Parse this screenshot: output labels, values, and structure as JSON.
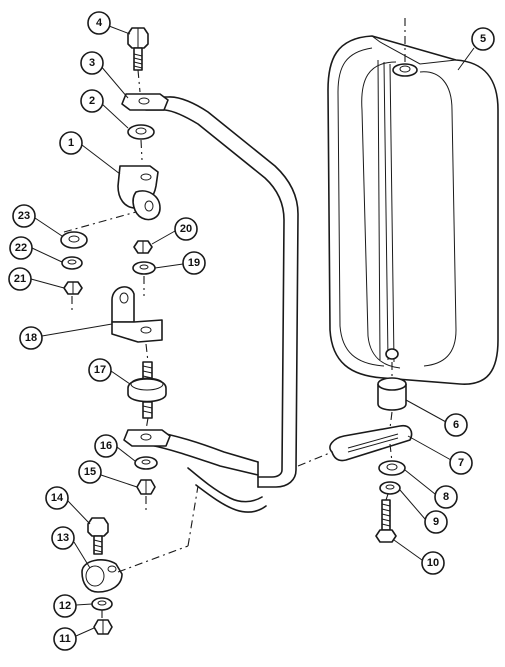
{
  "figure": {
    "type": "exploded-parts-diagram",
    "callouts": [
      {
        "id": "c1",
        "label": "1"
      },
      {
        "id": "c2",
        "label": "2"
      },
      {
        "id": "c3",
        "label": "3"
      },
      {
        "id": "c4",
        "label": "4"
      },
      {
        "id": "c5",
        "label": "5"
      },
      {
        "id": "c6",
        "label": "6"
      },
      {
        "id": "c7",
        "label": "7"
      },
      {
        "id": "c8",
        "label": "8"
      },
      {
        "id": "c9",
        "label": "9"
      },
      {
        "id": "c10",
        "label": "10"
      },
      {
        "id": "c11",
        "label": "11"
      },
      {
        "id": "c12",
        "label": "12"
      },
      {
        "id": "c13",
        "label": "13"
      },
      {
        "id": "c14",
        "label": "14"
      },
      {
        "id": "c15",
        "label": "15"
      },
      {
        "id": "c16",
        "label": "16"
      },
      {
        "id": "c17",
        "label": "17"
      },
      {
        "id": "c18",
        "label": "18"
      },
      {
        "id": "c19",
        "label": "19"
      },
      {
        "id": "c20",
        "label": "20"
      },
      {
        "id": "c21",
        "label": "21"
      },
      {
        "id": "c22",
        "label": "22"
      },
      {
        "id": "c23",
        "label": "23"
      }
    ]
  }
}
